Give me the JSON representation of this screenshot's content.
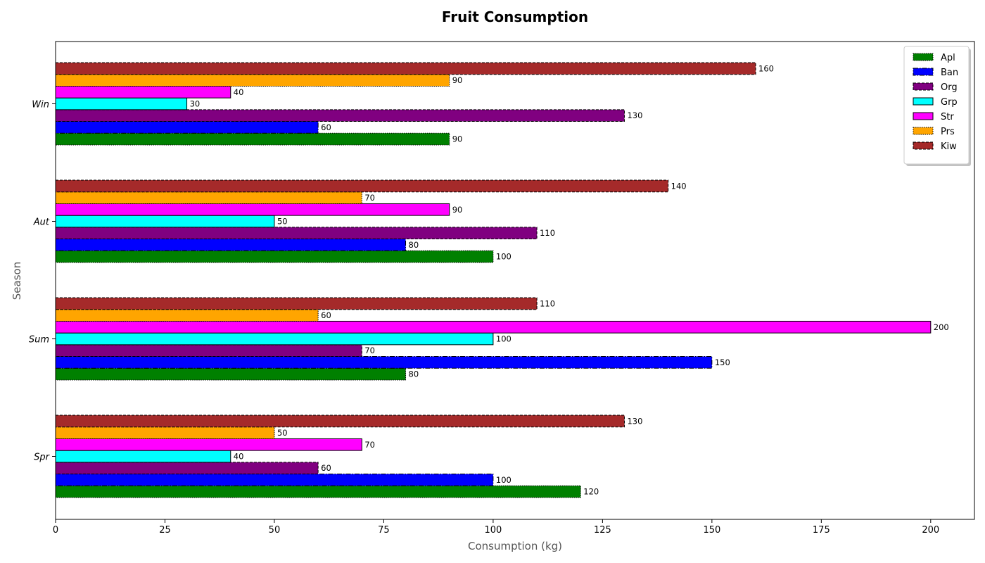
{
  "chart_data": {
    "type": "bar",
    "orientation": "horizontal",
    "title": "Fruit Consumption",
    "xlabel": "Consumption (kg)",
    "ylabel": "Season",
    "categories": [
      "Spr",
      "Sum",
      "Aut",
      "Win"
    ],
    "xlim": [
      0,
      210
    ],
    "xticks": [
      0,
      25,
      50,
      75,
      100,
      125,
      150,
      175,
      200
    ],
    "grid": false,
    "legend_position": "top-right",
    "series": [
      {
        "name": "Apl",
        "color": "#008000",
        "values": [
          120,
          80,
          100,
          90
        ]
      },
      {
        "name": "Ban",
        "color": "#0000ff",
        "values": [
          100,
          150,
          80,
          60
        ]
      },
      {
        "name": "Org",
        "color": "#800080",
        "values": [
          60,
          70,
          110,
          130
        ]
      },
      {
        "name": "Grp",
        "color": "#00ffff",
        "values": [
          40,
          100,
          50,
          30
        ]
      },
      {
        "name": "Str",
        "color": "#ff00ff",
        "values": [
          70,
          200,
          90,
          40
        ]
      },
      {
        "name": "Prs",
        "color": "#ffa500",
        "values": [
          50,
          60,
          70,
          90
        ]
      },
      {
        "name": "Kiw",
        "color": "#a52a2a",
        "values": [
          130,
          110,
          140,
          160
        ]
      }
    ]
  }
}
